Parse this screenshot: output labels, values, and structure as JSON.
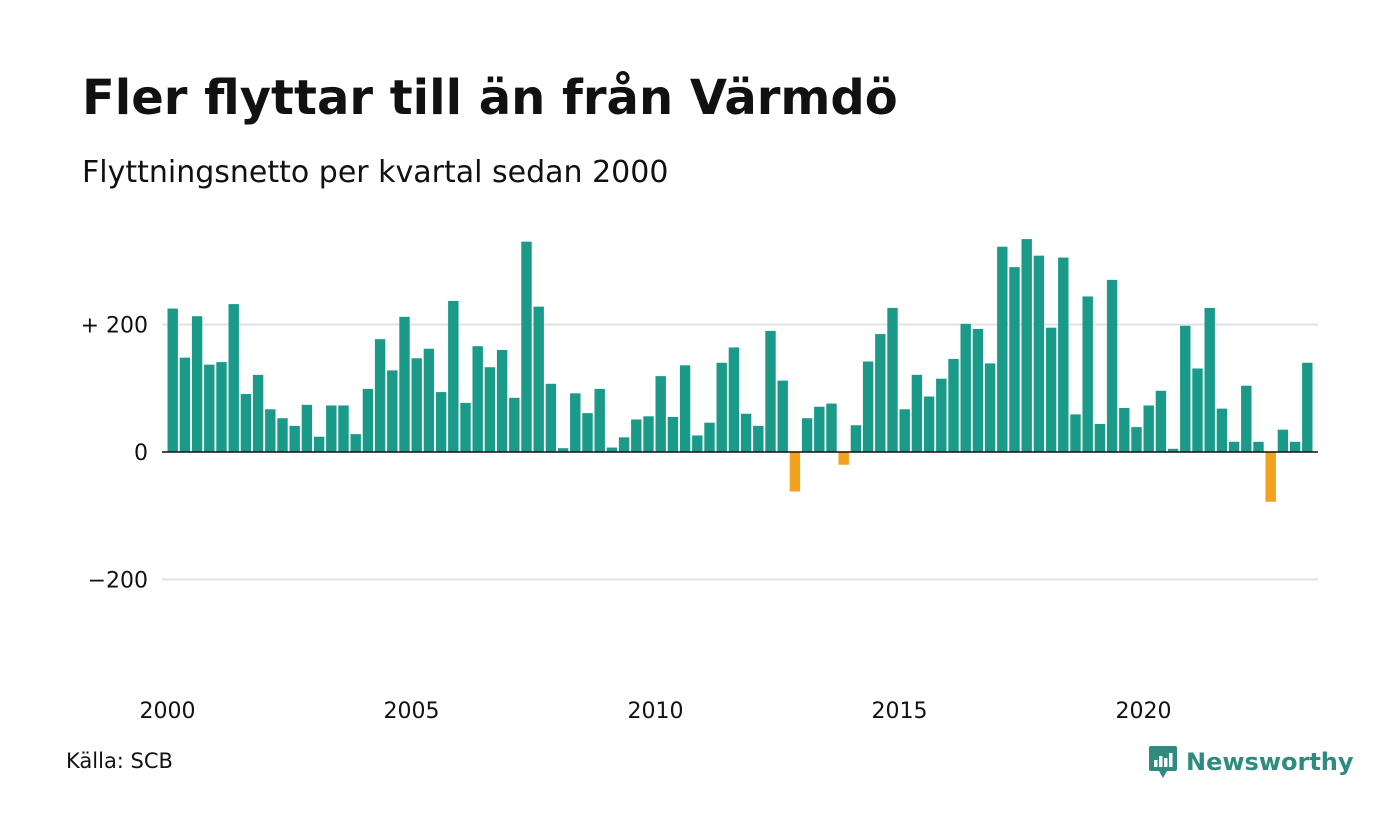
{
  "header": {
    "title": "Fler flyttar till än från Värmdö",
    "subtitle": "Flyttningsnetto per kvartal sedan 2000"
  },
  "footer": {
    "source": "Källa: SCB",
    "brand": "Newsworthy"
  },
  "colors": {
    "positive": "#1a9a88",
    "negative": "#f2a21e",
    "grid": "#e2e2e2",
    "zero_line": "#111111",
    "brand": "#2e8b7e"
  },
  "icons": {
    "brand_logo": "newsworthy-logo-icon"
  },
  "chart_data": {
    "type": "bar",
    "title": "Fler flyttar till än från Värmdö",
    "subtitle": "Flyttningsnetto per kvartal sedan 2000",
    "x_start": "2000 Q1",
    "x_tick_labels": [
      "2000",
      "2005",
      "2010",
      "2015",
      "2020"
    ],
    "y_ticks": [
      200,
      0,
      -200
    ],
    "y_tick_labels": [
      "+ 200",
      "0",
      "−200"
    ],
    "ylim": [
      -370,
      340
    ],
    "grid": "horizontal",
    "values": [
      225,
      148,
      213,
      137,
      141,
      232,
      91,
      121,
      67,
      53,
      41,
      74,
      24,
      73,
      73,
      28,
      99,
      177,
      128,
      212,
      147,
      162,
      94,
      237,
      77,
      166,
      133,
      160,
      85,
      330,
      228,
      107,
      6,
      92,
      61,
      99,
      7,
      23,
      51,
      56,
      119,
      55,
      136,
      26,
      46,
      140,
      164,
      60,
      41,
      190,
      112,
      -62,
      53,
      71,
      76,
      -20,
      42,
      142,
      185,
      226,
      67,
      121,
      87,
      115,
      146,
      201,
      193,
      139,
      322,
      290,
      334,
      308,
      195,
      305,
      59,
      244,
      44,
      270,
      69,
      39,
      73,
      96,
      5,
      198,
      131,
      226,
      68,
      16,
      104,
      16,
      -78,
      35,
      16,
      140
    ]
  }
}
